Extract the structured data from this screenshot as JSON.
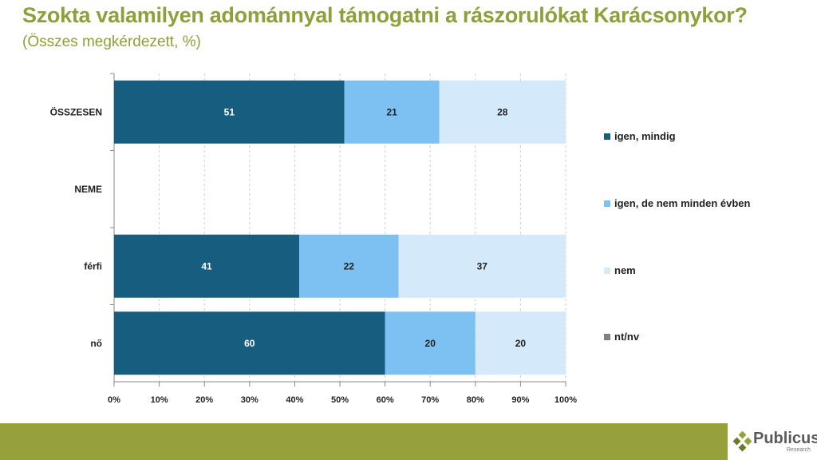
{
  "title": "Szokta valamilyen adománnyal támogatni a rászorulókat Karácsonykor?",
  "subtitle": "(Összes megkérdezett, %)",
  "logo": {
    "name": "Publicus",
    "sub": "Research"
  },
  "chart_data": {
    "type": "bar",
    "orientation": "horizontal-stacked-100",
    "categories": [
      "ÖSSZESEN",
      "NEME",
      "férfi",
      "nő"
    ],
    "series": [
      {
        "name": "igen, mindig",
        "color": "#175d7f",
        "values": [
          51,
          null,
          41,
          60
        ]
      },
      {
        "name": "igen, de nem minden évben",
        "color": "#7cc1f2",
        "values": [
          21,
          null,
          22,
          20
        ]
      },
      {
        "name": "nem",
        "color": "#d4e9fa",
        "values": [
          28,
          null,
          37,
          20
        ]
      },
      {
        "name": "nt/nv",
        "color": "#808080",
        "values": [
          0,
          null,
          0,
          0
        ]
      }
    ],
    "xlim": [
      0,
      100
    ],
    "xticks": [
      "0%",
      "10%",
      "20%",
      "30%",
      "40%",
      "50%",
      "60%",
      "70%",
      "80%",
      "90%",
      "100%"
    ],
    "grid": true,
    "legend": "right"
  }
}
